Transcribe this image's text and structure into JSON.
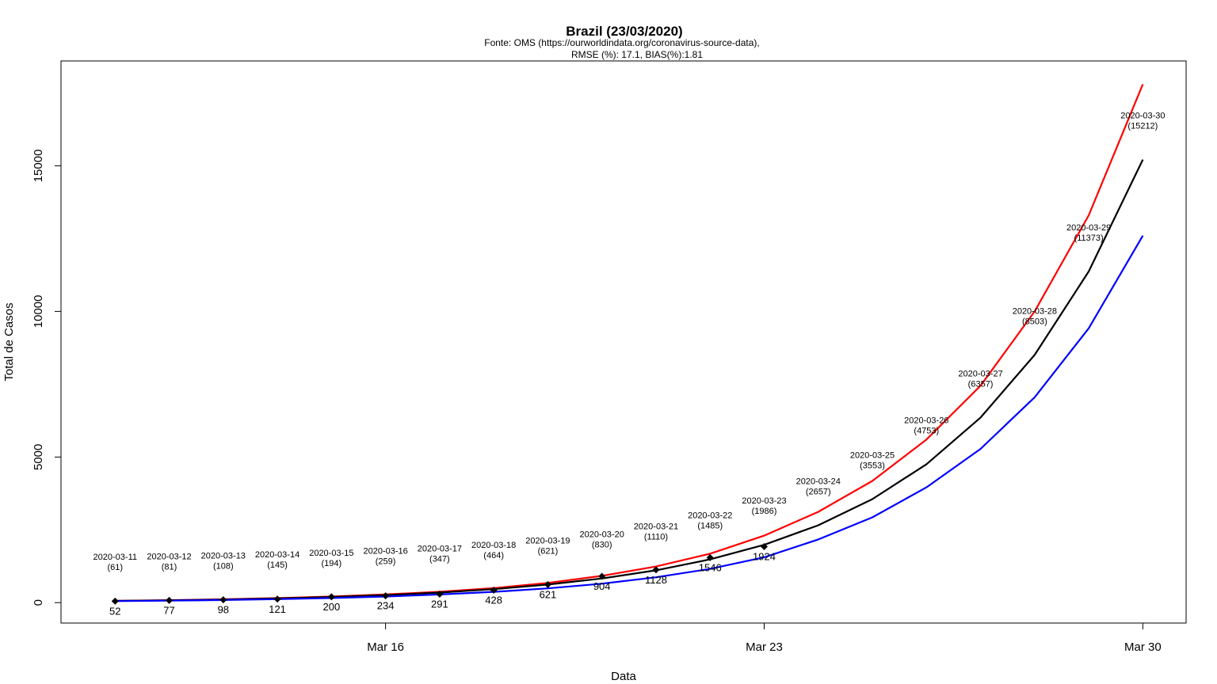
{
  "chart_data": {
    "type": "line",
    "title": "Brazil (23/03/2020)",
    "subtitle_lines": [
      "Fonte: OMS (https://ourworldindata.org/coronavirus-source-data),",
      "RMSE (%): 17.1, BIAS(%):1.81"
    ],
    "xlabel": "Data",
    "ylabel": "Total de Casos",
    "xlim": [
      "2020-03-10",
      "2020-03-30.8"
    ],
    "ylim": [
      -700,
      18600
    ],
    "x_ticks": [
      {
        "date": "2020-03-16",
        "label": "Mar 16"
      },
      {
        "date": "2020-03-23",
        "label": "Mar 23"
      },
      {
        "date": "2020-03-30",
        "label": "Mar 30"
      }
    ],
    "y_ticks": [
      {
        "value": 0,
        "label": "0"
      },
      {
        "value": 5000,
        "label": "5000"
      },
      {
        "value": 10000,
        "label": "10000"
      },
      {
        "value": 15000,
        "label": "15000"
      }
    ],
    "x": [
      "2020-03-11",
      "2020-03-12",
      "2020-03-13",
      "2020-03-14",
      "2020-03-15",
      "2020-03-16",
      "2020-03-17",
      "2020-03-18",
      "2020-03-19",
      "2020-03-20",
      "2020-03-21",
      "2020-03-22",
      "2020-03-23",
      "2020-03-24",
      "2020-03-25",
      "2020-03-26",
      "2020-03-27",
      "2020-03-28",
      "2020-03-29",
      "2020-03-30"
    ],
    "series": [
      {
        "color": "#ff0000",
        "values": [
          62,
          85,
          115,
          155,
          210,
          280,
          375,
          500,
          675,
          920,
          1240,
          1680,
          2300,
          3120,
          4180,
          5600,
          7450,
          10000,
          13300,
          17800
        ]
      },
      {
        "color": "#000000",
        "values": [
          61,
          81,
          108,
          145,
          194,
          259,
          347,
          464,
          621,
          830,
          1110,
          1485,
          1986,
          2657,
          3553,
          4753,
          6357,
          8503,
          11373,
          15212
        ]
      },
      {
        "color": "#0000ff",
        "values": [
          52,
          70,
          92,
          122,
          160,
          210,
          280,
          370,
          490,
          650,
          870,
          1160,
          1560,
          2170,
          2930,
          3960,
          5280,
          7050,
          9420,
          12600
        ]
      }
    ],
    "observed": {
      "x": [
        "2020-03-11",
        "2020-03-12",
        "2020-03-13",
        "2020-03-14",
        "2020-03-15",
        "2020-03-16",
        "2020-03-17",
        "2020-03-18",
        "2020-03-19",
        "2020-03-20",
        "2020-03-21",
        "2020-03-22",
        "2020-03-23"
      ],
      "values": [
        52,
        77,
        98,
        121,
        200,
        234,
        291,
        428,
        621,
        904,
        1128,
        1546,
        1924
      ],
      "labels": [
        "52",
        "77",
        "98",
        "121",
        "200",
        "234",
        "291",
        "428",
        "621",
        "904",
        "1128",
        "1546",
        "1924"
      ]
    },
    "annotations": [
      {
        "date": "2020-03-11",
        "value": 61,
        "line1": "2020-03-11",
        "line2": "(61)"
      },
      {
        "date": "2020-03-12",
        "value": 81,
        "line1": "2020-03-12",
        "line2": "(81)"
      },
      {
        "date": "2020-03-13",
        "value": 108,
        "line1": "2020-03-13",
        "line2": "(108)"
      },
      {
        "date": "2020-03-14",
        "value": 145,
        "line1": "2020-03-14",
        "line2": "(145)"
      },
      {
        "date": "2020-03-15",
        "value": 194,
        "line1": "2020-03-15",
        "line2": "(194)"
      },
      {
        "date": "2020-03-16",
        "value": 259,
        "line1": "2020-03-16",
        "line2": "(259)"
      },
      {
        "date": "2020-03-17",
        "value": 347,
        "line1": "2020-03-17",
        "line2": "(347)"
      },
      {
        "date": "2020-03-18",
        "value": 464,
        "line1": "2020-03-18",
        "line2": "(464)"
      },
      {
        "date": "2020-03-19",
        "value": 621,
        "line1": "2020-03-19",
        "line2": "(621)"
      },
      {
        "date": "2020-03-20",
        "value": 830,
        "line1": "2020-03-20",
        "line2": "(830)"
      },
      {
        "date": "2020-03-21",
        "value": 1110,
        "line1": "2020-03-21",
        "line2": "(1110)"
      },
      {
        "date": "2020-03-22",
        "value": 1485,
        "line1": "2020-03-22",
        "line2": "(1485)"
      },
      {
        "date": "2020-03-23",
        "value": 1986,
        "line1": "2020-03-23",
        "line2": "(1986)"
      },
      {
        "date": "2020-03-24",
        "value": 2657,
        "line1": "2020-03-24",
        "line2": "(2657)"
      },
      {
        "date": "2020-03-25",
        "value": 3553,
        "line1": "2020-03-25",
        "line2": "(3553)"
      },
      {
        "date": "2020-03-26",
        "value": 4753,
        "line1": "2020-03-26",
        "line2": "(4753)"
      },
      {
        "date": "2020-03-27",
        "value": 6357,
        "line1": "2020-03-27",
        "line2": "(6357)"
      },
      {
        "date": "2020-03-28",
        "value": 8503,
        "line1": "2020-03-28",
        "line2": "(8503)"
      },
      {
        "date": "2020-03-29",
        "value": 11373,
        "line1": "2020-03-29",
        "line2": "(11373)"
      },
      {
        "date": "2020-03-30",
        "value": 15212,
        "line1": "2020-03-30",
        "line2": "(15212)"
      }
    ],
    "grid": false,
    "legend": "none"
  }
}
